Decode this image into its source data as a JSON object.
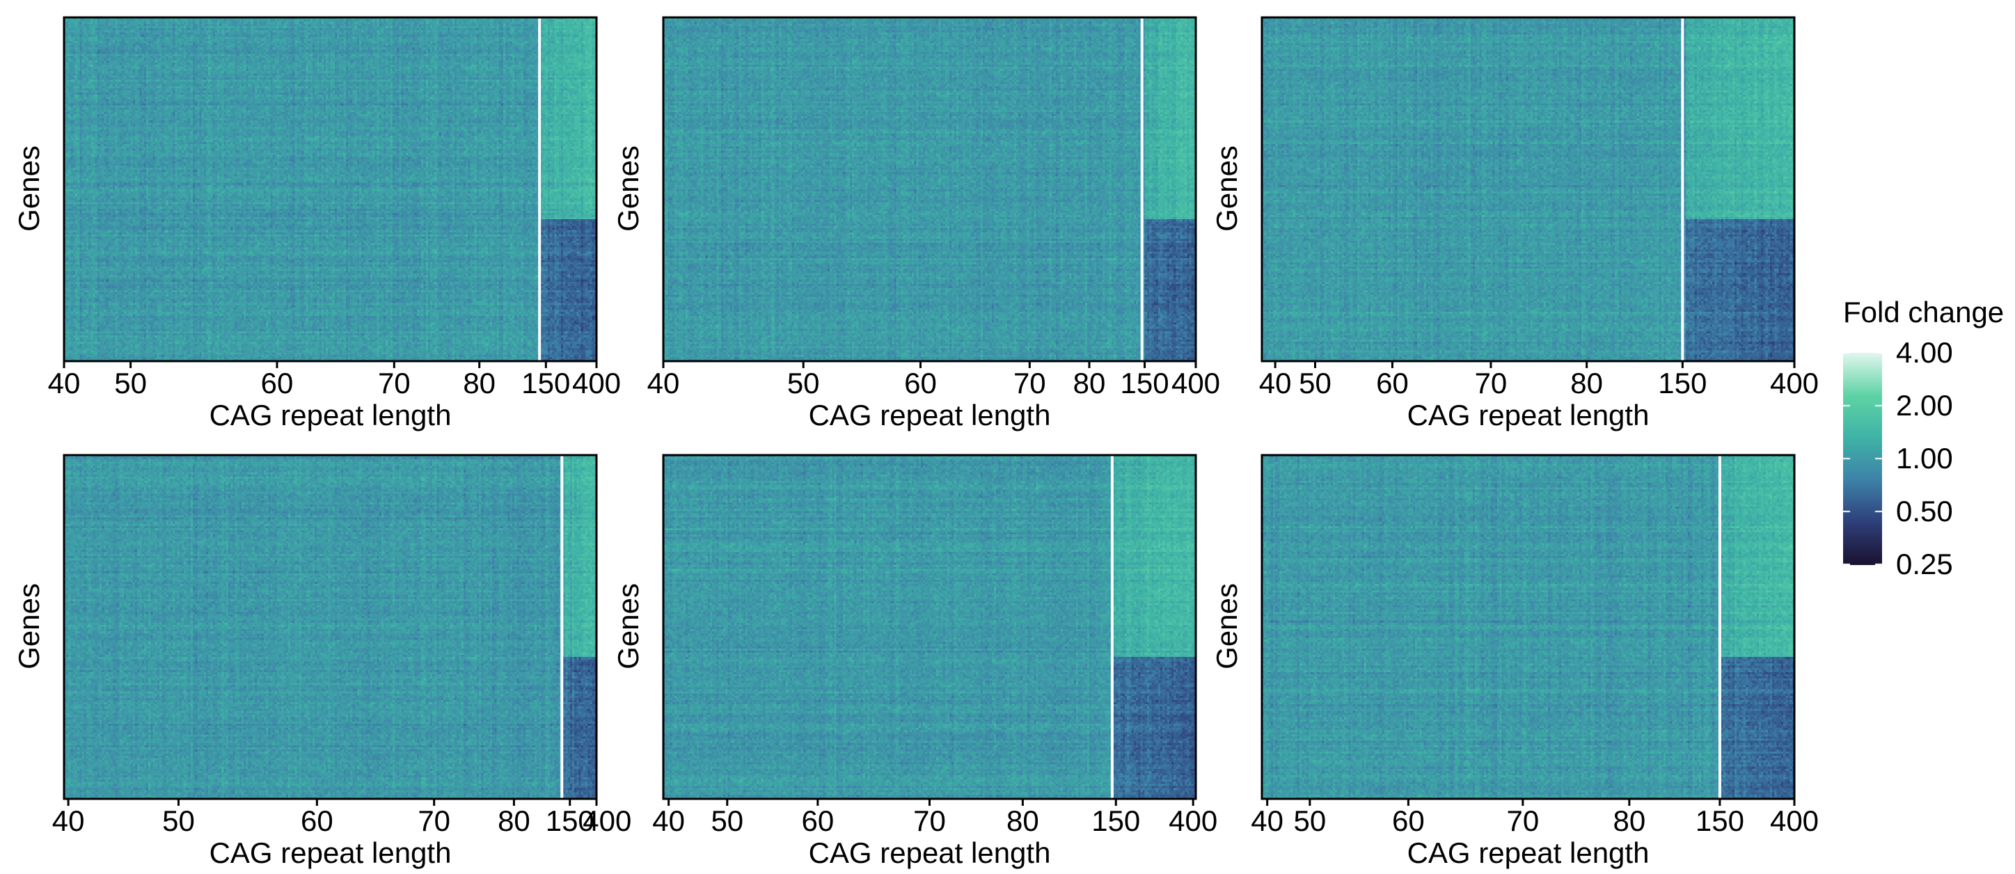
{
  "legend": {
    "title": "Fold change",
    "ticks": [
      "4.00",
      "2.00",
      "1.00",
      "0.50",
      "0.25"
    ],
    "tick_values": [
      4.0,
      2.0,
      1.0,
      0.5,
      0.25
    ],
    "scale": "log2",
    "colors": [
      "#1a1230",
      "#2e3f7a",
      "#3d82a8",
      "#3fb3a6",
      "#5fd3a5",
      "#e0f6ee"
    ]
  },
  "chart_data": [
    {
      "type": "heatmap",
      "panel": 1,
      "ylabel": "Genes",
      "xlabel": "CAG repeat length",
      "x_ticks": [
        "40",
        "50",
        "60",
        "70",
        "80",
        "150",
        "400"
      ],
      "x_tick_pos": [
        0.0,
        0.125,
        0.4,
        0.62,
        0.78,
        0.905,
        1.0
      ],
      "divider_at": 0.893,
      "split_row_fraction": 0.59,
      "grid": false
    },
    {
      "type": "heatmap",
      "panel": 2,
      "ylabel": "Genes",
      "xlabel": "CAG repeat length",
      "x_ticks": [
        "40",
        "50",
        "60",
        "70",
        "80",
        "150",
        "400"
      ],
      "x_tick_pos": [
        0.0,
        0.263,
        0.483,
        0.688,
        0.8,
        0.904,
        1.0
      ],
      "divider_at": 0.899,
      "split_row_fraction": 0.59,
      "grid": false
    },
    {
      "type": "heatmap",
      "panel": 3,
      "ylabel": "Genes",
      "xlabel": "CAG repeat length",
      "x_ticks": [
        "40",
        "50",
        "60",
        "70",
        "80",
        "150",
        "400"
      ],
      "x_tick_pos": [
        0.025,
        0.1,
        0.245,
        0.43,
        0.61,
        0.79,
        1.0
      ],
      "divider_at": 0.79,
      "split_row_fraction": 0.59,
      "grid": false
    },
    {
      "type": "heatmap",
      "panel": 4,
      "ylabel": "Genes",
      "xlabel": "CAG repeat length",
      "x_ticks": [
        "40",
        "50",
        "60",
        "70",
        "80",
        "150",
        "400"
      ],
      "x_tick_pos": [
        0.008,
        0.215,
        0.475,
        0.695,
        0.845,
        0.95,
        1.02
      ],
      "divider_at": 0.935,
      "split_row_fraction": 0.59,
      "grid": false
    },
    {
      "type": "heatmap",
      "panel": 5,
      "ylabel": "Genes",
      "xlabel": "CAG repeat length",
      "x_ticks": [
        "40",
        "50",
        "60",
        "70",
        "80",
        "150",
        "400"
      ],
      "x_tick_pos": [
        0.01,
        0.12,
        0.29,
        0.5,
        0.675,
        0.85,
        0.995
      ],
      "divider_at": 0.843,
      "split_row_fraction": 0.59,
      "grid": false
    },
    {
      "type": "heatmap",
      "panel": 6,
      "ylabel": "Genes",
      "xlabel": "CAG repeat length",
      "x_ticks": [
        "40",
        "50",
        "60",
        "70",
        "80",
        "150",
        "400"
      ],
      "x_tick_pos": [
        0.01,
        0.09,
        0.275,
        0.49,
        0.69,
        0.86,
        1.0
      ],
      "divider_at": 0.86,
      "split_row_fraction": 0.59,
      "grid": false
    }
  ]
}
